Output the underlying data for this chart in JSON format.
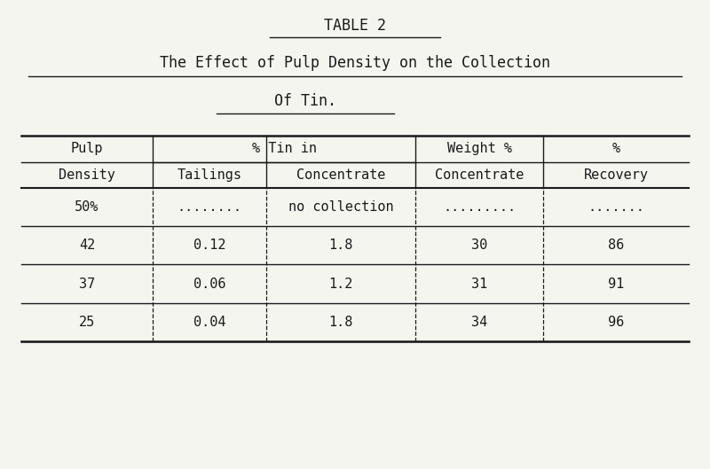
{
  "title_line1": "TABLE 2",
  "title_line2": "The Effect of Pulp Density on the Collection",
  "title_line3": "Of Tin.",
  "rows": [
    [
      "50%",
      "........",
      "no collection",
      ".........",
      "......."
    ],
    [
      "42",
      "0.12",
      "1.8",
      "30",
      "86"
    ],
    [
      "37",
      "0.06",
      "1.2",
      "31",
      "91"
    ],
    [
      "25",
      "0.04",
      "1.8",
      "34",
      "96"
    ]
  ],
  "bg_color": "#f5f5f0",
  "text_color": "#1a1a1a",
  "font_family": "monospace",
  "fig_width": 8.0,
  "fig_height": 5.29,
  "dpi": 100
}
